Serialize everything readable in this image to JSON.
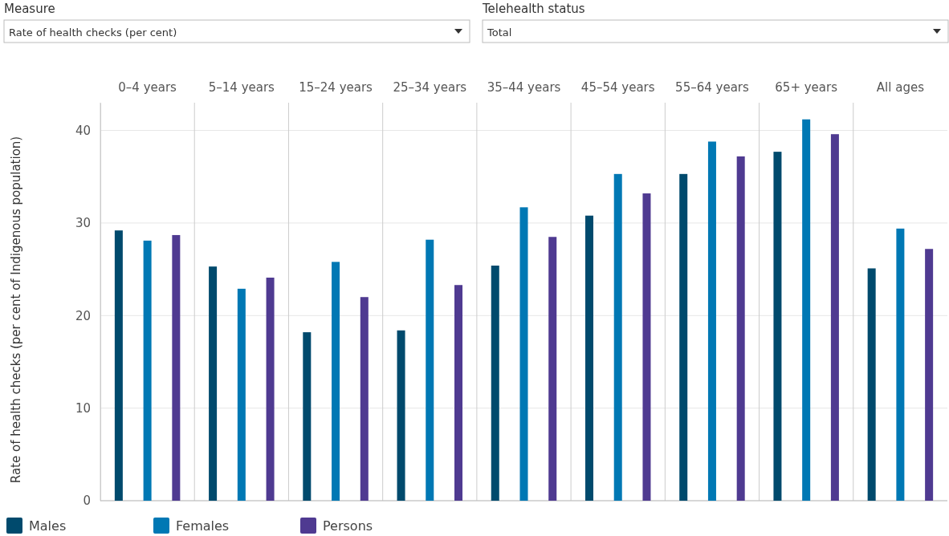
{
  "chart_data": {
    "type": "bar",
    "ylabel": "Rate of health checks (per cent of Indigenous population)",
    "categories": [
      "0–4 years",
      "5–14 years",
      "15–24 years",
      "25–34 years",
      "35–44 years",
      "45–54 years",
      "55–64 years",
      "65+ years",
      "All ages"
    ],
    "series": [
      {
        "name": "Males",
        "color": "#004a6d",
        "values": [
          29.2,
          25.3,
          18.2,
          18.4,
          25.4,
          30.8,
          35.3,
          37.7,
          25.1
        ]
      },
      {
        "name": "Females",
        "color": "#0078b4",
        "values": [
          28.1,
          22.9,
          25.8,
          28.2,
          31.7,
          35.3,
          38.8,
          41.2,
          29.4
        ]
      },
      {
        "name": "Persons",
        "color": "#4f3a91",
        "values": [
          28.7,
          24.1,
          22.0,
          23.3,
          28.5,
          33.2,
          37.2,
          39.6,
          27.2
        ]
      }
    ],
    "ylim": [
      0,
      43
    ],
    "yticks": [
      0,
      10,
      20,
      30,
      40
    ],
    "grid": "y",
    "legend": "bottom",
    "annotations": [
      "Measure",
      "Rate of health checks (per cent)",
      "Telehealth status",
      "Total"
    ]
  }
}
